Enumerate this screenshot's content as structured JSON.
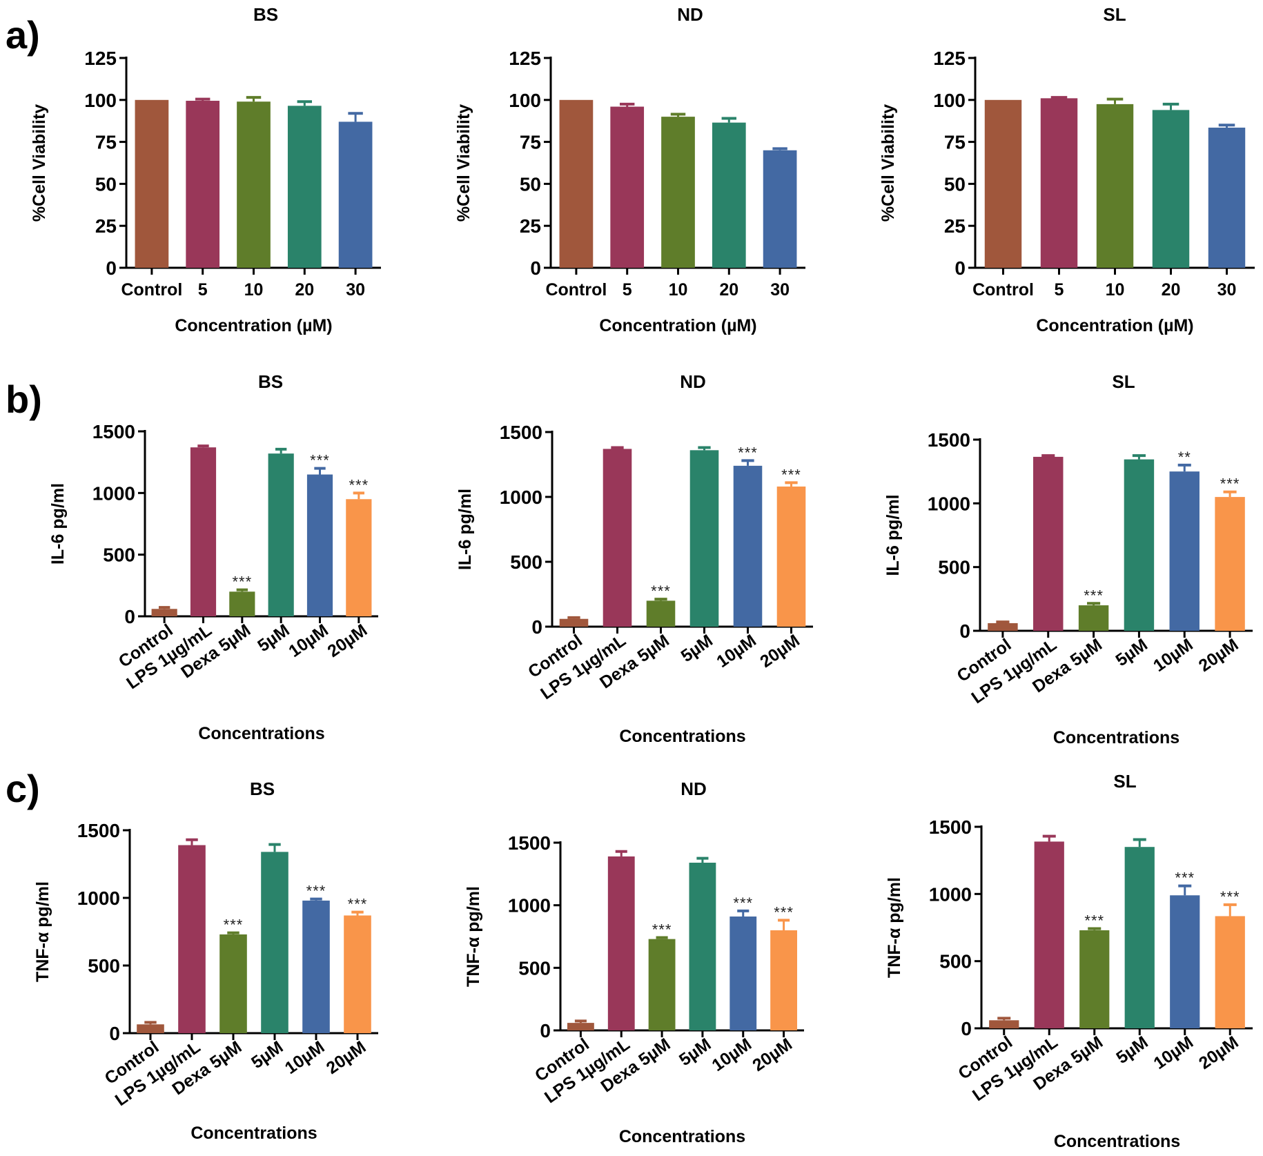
{
  "panel_letters": [
    "a)",
    "b)",
    "c)"
  ],
  "colors": {
    "control": "#A0573C",
    "lps": "#993759",
    "dexa": "#5F7D2A",
    "m5": "#2A836A",
    "m10": "#4369A3",
    "m20": "#F9954A",
    "viability": [
      "#A0573C",
      "#993759",
      "#5F7D2A",
      "#2A836A",
      "#4369A3"
    ]
  },
  "chart_data": [
    {
      "id": "a-bs",
      "type": "bar",
      "title": "BS",
      "xlabel": "Concentration (µM)",
      "ylabel": "%Cell Viability",
      "ylim": [
        0,
        125
      ],
      "yticks": [
        0,
        25,
        50,
        75,
        100,
        125
      ],
      "categories": [
        "Control",
        "5",
        "10",
        "20",
        "30"
      ],
      "values": [
        100,
        99.5,
        99,
        96.5,
        87
      ],
      "errors": [
        0,
        1,
        2.5,
        2.5,
        5
      ],
      "sig": [
        "",
        "",
        "",
        "",
        ""
      ]
    },
    {
      "id": "a-nd",
      "type": "bar",
      "title": "ND",
      "xlabel": "Concentration (µM)",
      "ylabel": "%Cell Viability",
      "ylim": [
        0,
        125
      ],
      "yticks": [
        0,
        25,
        50,
        75,
        100,
        125
      ],
      "categories": [
        "Control",
        "5",
        "10",
        "20",
        "30"
      ],
      "values": [
        100,
        96,
        90,
        86.5,
        70
      ],
      "errors": [
        0,
        1.5,
        1.5,
        2.5,
        1
      ],
      "sig": [
        "",
        "",
        "",
        "",
        ""
      ]
    },
    {
      "id": "a-sl",
      "type": "bar",
      "title": "SL",
      "xlabel": "Concentration (µM)",
      "ylabel": "%Cell Viability",
      "ylim": [
        0,
        125
      ],
      "yticks": [
        0,
        25,
        50,
        75,
        100,
        125
      ],
      "categories": [
        "Control",
        "5",
        "10",
        "20",
        "30"
      ],
      "values": [
        100,
        101,
        97.5,
        94,
        83.5
      ],
      "errors": [
        0,
        0.5,
        3,
        3.5,
        1.5
      ],
      "sig": [
        "",
        "",
        "",
        "",
        ""
      ]
    },
    {
      "id": "b-bs",
      "type": "bar",
      "title": "BS",
      "xlabel": "Concentrations",
      "ylabel": "IL-6 pg/ml",
      "ylim": [
        0,
        1500
      ],
      "yticks": [
        0,
        500,
        1000,
        1500
      ],
      "categories": [
        "Control",
        "LPS 1µg/mL",
        "Dexa 5µM",
        "5µM",
        "10µM",
        "20µM"
      ],
      "values": [
        60,
        1370,
        200,
        1320,
        1150,
        950
      ],
      "errors": [
        12,
        12,
        15,
        35,
        50,
        50
      ],
      "sig": [
        "",
        "",
        "***",
        "",
        "***",
        "***"
      ]
    },
    {
      "id": "b-nd",
      "type": "bar",
      "title": "ND",
      "xlabel": "Concentrations",
      "ylabel": "IL-6 pg/ml",
      "ylim": [
        0,
        1500
      ],
      "yticks": [
        0,
        500,
        1000,
        1500
      ],
      "categories": [
        "Control",
        "LPS 1µg/mL",
        "Dexa 5µM",
        "5µM",
        "10µM",
        "20µM"
      ],
      "values": [
        60,
        1370,
        200,
        1360,
        1240,
        1080
      ],
      "errors": [
        10,
        10,
        12,
        20,
        40,
        30
      ],
      "sig": [
        "",
        "",
        "***",
        "",
        "***",
        "***"
      ]
    },
    {
      "id": "b-sl",
      "type": "bar",
      "title": "SL",
      "xlabel": "Concentrations",
      "ylabel": "IL-6 pg/ml",
      "ylim": [
        0,
        1500
      ],
      "yticks": [
        0,
        500,
        1000,
        1500
      ],
      "categories": [
        "Control",
        "LPS 1µg/mL",
        "Dexa 5µM",
        "5µM",
        "10µM",
        "20µM"
      ],
      "values": [
        60,
        1365,
        200,
        1345,
        1250,
        1050
      ],
      "errors": [
        10,
        10,
        15,
        30,
        50,
        40
      ],
      "sig": [
        "",
        "",
        "***",
        "",
        "**",
        "***"
      ]
    },
    {
      "id": "c-bs",
      "type": "bar",
      "title": "BS",
      "xlabel": "Concentrations",
      "ylabel": "TNF-α pg/ml",
      "ylim": [
        0,
        1500
      ],
      "yticks": [
        0,
        500,
        1000,
        1500
      ],
      "categories": [
        "Control",
        "LPS 1µg/mL",
        "Dexa 5µM",
        "5µM",
        "10µM",
        "20µM"
      ],
      "values": [
        65,
        1390,
        730,
        1340,
        980,
        870
      ],
      "errors": [
        15,
        40,
        12,
        55,
        12,
        25
      ],
      "sig": [
        "",
        "",
        "***",
        "",
        "***",
        "***"
      ]
    },
    {
      "id": "c-nd",
      "type": "bar",
      "title": "ND",
      "xlabel": "Concentrations",
      "ylabel": "TNF-α pg/ml",
      "ylim": [
        0,
        1500
      ],
      "yticks": [
        0,
        500,
        1000,
        1500
      ],
      "categories": [
        "Control",
        "LPS 1µg/mL",
        "Dexa 5µM",
        "5µM",
        "10µM",
        "20µM"
      ],
      "values": [
        60,
        1390,
        730,
        1340,
        910,
        800
      ],
      "errors": [
        15,
        40,
        12,
        35,
        45,
        80
      ],
      "sig": [
        "",
        "",
        "***",
        "",
        "***",
        "***"
      ]
    },
    {
      "id": "c-sl",
      "type": "bar",
      "title": "SL",
      "xlabel": "Concentrations",
      "ylabel": "TNF-α pg/ml",
      "ylim": [
        0,
        1500
      ],
      "yticks": [
        0,
        500,
        1000,
        1500
      ],
      "categories": [
        "Control",
        "LPS 1µg/mL",
        "Dexa 5µM",
        "5µM",
        "10µM",
        "20µM"
      ],
      "values": [
        60,
        1390,
        730,
        1350,
        990,
        835
      ],
      "errors": [
        15,
        40,
        12,
        55,
        70,
        85
      ],
      "sig": [
        "",
        "",
        "***",
        "",
        "***",
        "***"
      ]
    }
  ]
}
